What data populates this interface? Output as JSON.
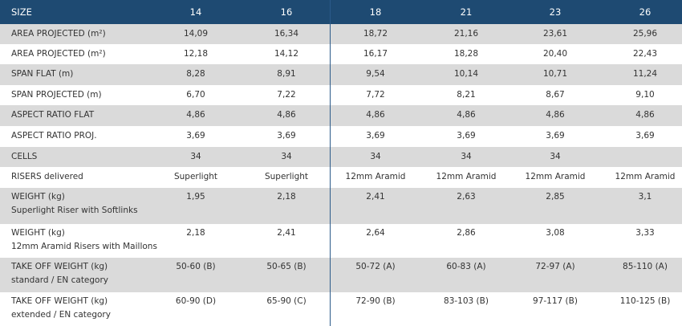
{
  "table": {
    "header": {
      "label": "SIZE",
      "sizes": [
        "14",
        "16",
        "18",
        "21",
        "23",
        "26"
      ]
    },
    "rows": [
      {
        "label": "AREA PROJECTED (m²)",
        "values": [
          "14,09",
          "16,34",
          "18,72",
          "21,16",
          "23,61",
          "25,96"
        ]
      },
      {
        "label": "AREA PROJECTED (m²)",
        "values": [
          "12,18",
          "14,12",
          "16,17",
          "18,28",
          "20,40",
          "22,43"
        ]
      },
      {
        "label": "SPAN FLAT (m)",
        "values": [
          "8,28",
          "8,91",
          "9,54",
          "10,14",
          "10,71",
          "11,24"
        ]
      },
      {
        "label": "SPAN PROJECTED (m)",
        "values": [
          "6,70",
          "7,22",
          "7,72",
          "8,21",
          "8,67",
          "9,10"
        ]
      },
      {
        "label": "ASPECT RATIO FLAT",
        "values": [
          "4,86",
          "4,86",
          "4,86",
          "4,86",
          "4,86",
          "4,86"
        ]
      },
      {
        "label": "ASPECT RATIO PROJ.",
        "values": [
          "3,69",
          "3,69",
          "3,69",
          "3,69",
          "3,69",
          "3,69"
        ]
      },
      {
        "label": "CELLS",
        "values": [
          "34",
          "34",
          "34",
          "34",
          "34",
          null
        ]
      },
      {
        "label": "RISERS delivered",
        "values": [
          "Superlight",
          "Superlight",
          "12mm Aramid",
          "12mm Aramid",
          "12mm Aramid",
          "12mm Aramid"
        ]
      },
      {
        "label": "WEIGHT (kg)",
        "sublabel": "Superlight Riser with Softlinks",
        "values": [
          "1,95",
          "2,18",
          "2,41",
          "2,63",
          "2,85",
          "3,1"
        ]
      },
      {
        "label": "WEIGHT (kg)",
        "sublabel": "12mm Aramid Risers with Maillons",
        "values": [
          "2,18",
          "2,41",
          "2,64",
          "2,86",
          "3,08",
          "3,33"
        ]
      },
      {
        "label": "TAKE OFF WEIGHT (kg)",
        "sublabel": "standard / EN category",
        "values": [
          "50-60 (B)",
          "50-65 (B)",
          "50-72 (A)",
          "60-83 (A)",
          "72-97 (A)",
          "85-110 (A)"
        ]
      },
      {
        "label": "TAKE OFF WEIGHT (kg)",
        "sublabel": "extended / EN category",
        "values": [
          "60-90 (D)",
          "65-90 (C)",
          "72-90 (B)",
          "83-103 (B)",
          "97-117 (B)",
          "110-125 (B)"
        ]
      }
    ]
  }
}
